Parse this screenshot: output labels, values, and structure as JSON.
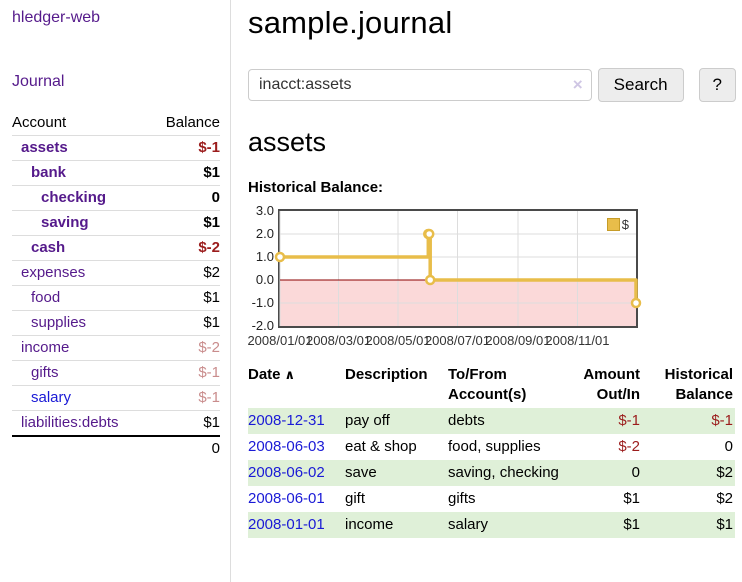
{
  "colors": {
    "link_purple": "#551a8b",
    "link_blue": "#1a1ad6",
    "negative": "#9b1c1c",
    "negative_muted": "#c98c8c",
    "row_shade_green": "#dff0d8",
    "chart_gold": "#e8bd4a",
    "chart_gold_border": "#c69c28",
    "chart_negative_region": "#fbd9d9",
    "chart_zero_line": "#8b0000",
    "chart_grid": "#dddddd",
    "chart_frame": "#4a4a4a"
  },
  "sidebar": {
    "app_title": "hledger-web",
    "journal_link": "Journal",
    "accounts_table": {
      "headers": [
        "Account",
        "Balance"
      ],
      "rows": [
        {
          "name": "assets",
          "indent": 0,
          "bold": true,
          "balance": "$-1",
          "balance_color": "negative"
        },
        {
          "name": "bank",
          "indent": 1,
          "bold": true,
          "balance": "$1",
          "balance_color": ""
        },
        {
          "name": "checking",
          "indent": 2,
          "bold": true,
          "balance": "0",
          "balance_color": ""
        },
        {
          "name": "saving",
          "indent": 2,
          "bold": true,
          "balance": "$1",
          "balance_color": ""
        },
        {
          "name": "cash",
          "indent": 1,
          "bold": true,
          "balance": "$-2",
          "balance_color": "negative"
        },
        {
          "name": "expenses",
          "indent": 0,
          "bold": false,
          "balance": "$2",
          "balance_color": ""
        },
        {
          "name": "food",
          "indent": 1,
          "bold": false,
          "balance": "$1",
          "balance_color": ""
        },
        {
          "name": "supplies",
          "indent": 1,
          "bold": false,
          "balance": "$1",
          "balance_color": ""
        },
        {
          "name": "income",
          "indent": 0,
          "bold": false,
          "balance": "$-2",
          "balance_color": "negative-muted"
        },
        {
          "name": "gifts",
          "indent": 1,
          "bold": false,
          "balance": "$-1",
          "balance_color": "negative-muted"
        },
        {
          "name": "salary",
          "indent": 1,
          "bold": false,
          "link_color": "blue",
          "balance": "$-1",
          "balance_color": "negative-muted"
        },
        {
          "name": "liabilities:debts",
          "indent": 0,
          "bold": false,
          "balance": "$1",
          "balance_color": ""
        }
      ],
      "total": "0"
    }
  },
  "main": {
    "title": "sample.journal",
    "search": {
      "value": "inacct:assets",
      "clear_icon": "×",
      "button_label": "Search",
      "help_label": "?"
    },
    "account_heading": "assets",
    "chart_heading": "Historical Balance:",
    "register": {
      "headers": [
        {
          "line1": "Date",
          "line2": "",
          "sortable": true,
          "align": "left"
        },
        {
          "line1": "Description",
          "line2": "",
          "align": "left"
        },
        {
          "line1": "To/From",
          "line2": "Account(s)",
          "align": "left"
        },
        {
          "line1": "Amount",
          "line2": "Out/In",
          "align": "right"
        },
        {
          "line1": "Historical",
          "line2": "Balance",
          "align": "right"
        }
      ],
      "sort_asc_icon": "∧",
      "rows": [
        {
          "date": "2008-12-31",
          "description": "pay off",
          "accounts": "debts",
          "amount": "$-1",
          "amount_neg": true,
          "balance": "$-1",
          "balance_neg": true,
          "shaded": true
        },
        {
          "date": "2008-06-03",
          "description": "eat & shop",
          "accounts": "food, supplies",
          "amount": "$-2",
          "amount_neg": true,
          "balance": "0",
          "balance_neg": false,
          "shaded": false
        },
        {
          "date": "2008-06-02",
          "description": "save",
          "accounts": "saving, checking",
          "amount": "0",
          "amount_neg": false,
          "balance": "$2",
          "balance_neg": false,
          "shaded": true
        },
        {
          "date": "2008-06-01",
          "description": "gift",
          "accounts": "gifts",
          "amount": "$1",
          "amount_neg": false,
          "balance": "$2",
          "balance_neg": false,
          "shaded": false
        },
        {
          "date": "2008-01-01",
          "description": "income",
          "accounts": "salary",
          "amount": "$1",
          "amount_neg": false,
          "balance": "$1",
          "balance_neg": false,
          "shaded": true
        }
      ]
    }
  },
  "chart_data": {
    "type": "line",
    "title": "Historical Balance:",
    "step": true,
    "xlabel": "",
    "ylabel": "",
    "xlim": [
      "2008-01-01",
      "2008-12-31"
    ],
    "ylim": [
      -2,
      3
    ],
    "grid": true,
    "y_ticks": [
      3.0,
      2.0,
      1.0,
      0.0,
      -1.0,
      -2.0
    ],
    "x_ticks": [
      {
        "date": "2008-01-01",
        "label": "2008/01/01"
      },
      {
        "date": "2008-03-01",
        "label": "2008/03/01"
      },
      {
        "date": "2008-05-01",
        "label": "2008/05/01"
      },
      {
        "date": "2008-07-01",
        "label": "2008/07/01"
      },
      {
        "date": "2008-09-01",
        "label": "2008/09/01"
      },
      {
        "date": "2008-11-01",
        "label": "2008/11/01"
      }
    ],
    "legend": {
      "position": "top-right",
      "label": "$"
    },
    "series": [
      {
        "name": "$",
        "color": "#e8bd4a",
        "points": [
          [
            "2008-01-01",
            1
          ],
          [
            "2008-06-01",
            2
          ],
          [
            "2008-06-02",
            2
          ],
          [
            "2008-06-03",
            0
          ],
          [
            "2008-12-31",
            -1
          ]
        ]
      }
    ]
  }
}
